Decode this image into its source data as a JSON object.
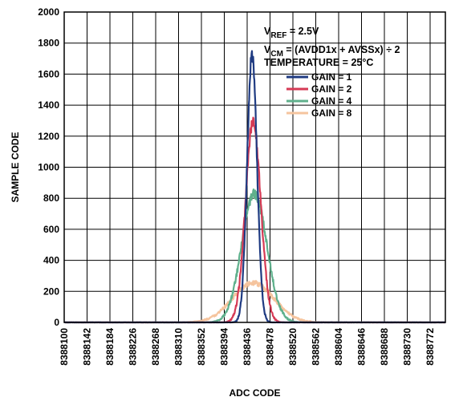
{
  "chart_data": {
    "type": "line",
    "xlabel": "ADC CODE",
    "ylabel": "SAMPLE CODE",
    "xlim": [
      8388100,
      8388800
    ],
    "ylim": [
      0,
      2000
    ],
    "x_ticks": [
      8388100,
      8388142,
      8388184,
      8388226,
      8388268,
      8388310,
      8388352,
      8388394,
      8388436,
      8388478,
      8388520,
      8388562,
      8388604,
      8388646,
      8388688,
      8388730,
      8388772
    ],
    "y_ticks": [
      0,
      200,
      400,
      600,
      800,
      1000,
      1200,
      1400,
      1600,
      1800,
      2000
    ],
    "grid": true,
    "annotations": [
      {
        "parts": [
          {
            "t": "V"
          },
          {
            "t": "REF",
            "sub": true
          },
          {
            "t": " = 2.5V"
          }
        ]
      },
      {
        "parts": [
          {
            "t": "V"
          },
          {
            "t": "CM",
            "sub": true
          },
          {
            "t": " = (AVDD1x + AVSSx) ÷ 2"
          }
        ]
      },
      {
        "parts": [
          {
            "t": "TEMPERATURE = 25°C"
          }
        ]
      }
    ],
    "legend_position": "top-right",
    "series": [
      {
        "name": "GAIN = 1",
        "color": "#1f3b82",
        "center": 8388445,
        "sigma": 9,
        "peak": 1720
      },
      {
        "name": "GAIN = 2",
        "color": "#d63a55",
        "center": 8388447,
        "sigma": 14,
        "peak": 1290
      },
      {
        "name": "GAIN = 4",
        "color": "#5fb08c",
        "center": 8388449,
        "sigma": 23,
        "peak": 830
      },
      {
        "name": "GAIN = 8",
        "color": "#f5c49e",
        "center": 8388447,
        "sigma": 38,
        "peak": 255
      }
    ]
  }
}
